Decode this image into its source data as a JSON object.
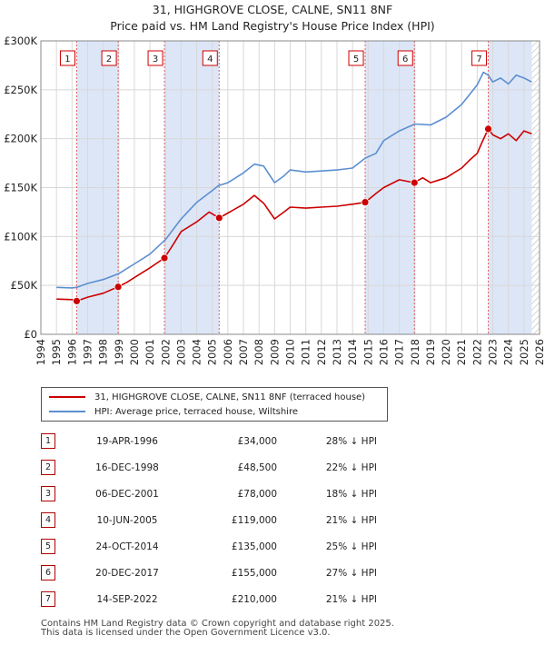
{
  "header": {
    "title": "31, HIGHGROVE CLOSE, CALNE, SN11 8NF",
    "subtitle": "Price paid vs. HM Land Registry's House Price Index (HPI)"
  },
  "legend": {
    "property": "31, HIGHGROVE CLOSE, CALNE, SN11 8NF (terraced house)",
    "hpi": "HPI: Average price, terraced house, Wiltshire"
  },
  "colors": {
    "property": "#cc0000",
    "hpi": "#5b8fd0",
    "shade": "#dde6f7",
    "marker_border": "#cc0000"
  },
  "chart_data": {
    "type": "line",
    "xlim": [
      1994,
      2026
    ],
    "ylim": [
      0,
      300000
    ],
    "y_ticks": [
      0,
      50000,
      100000,
      150000,
      200000,
      250000,
      300000
    ],
    "y_tick_labels": [
      "£0",
      "£50K",
      "£100K",
      "£150K",
      "£200K",
      "£250K",
      "£300K"
    ],
    "x_tick_labels": [
      "1994",
      "1995",
      "1996",
      "1997",
      "1998",
      "1999",
      "2000",
      "2001",
      "2002",
      "2003",
      "2004",
      "2005",
      "2006",
      "2007",
      "2008",
      "2009",
      "2010",
      "2011",
      "2012",
      "2013",
      "2014",
      "2015",
      "2016",
      "2017",
      "2018",
      "2019",
      "2020",
      "2021",
      "2022",
      "2023",
      "2024",
      "2025",
      "2026"
    ],
    "series": [
      {
        "name": "HPI: Average price, terraced house, Wiltshire",
        "color": "#5b8fd0",
        "x": [
          1995.0,
          1996.0,
          1996.3,
          1997.0,
          1998.0,
          1999.0,
          2000.0,
          2001.0,
          2002.0,
          2003.0,
          2004.0,
          2005.0,
          2005.4,
          2006.0,
          2007.0,
          2007.7,
          2008.3,
          2009.0,
          2009.6,
          2010.0,
          2011.0,
          2012.0,
          2013.0,
          2014.0,
          2014.8,
          2015.5,
          2016.0,
          2017.0,
          2018.0,
          2019.0,
          2020.0,
          2021.0,
          2021.5,
          2022.0,
          2022.4,
          2022.7,
          2023.0,
          2023.5,
          2024.0,
          2024.5,
          2025.0,
          2025.5
        ],
        "y": [
          48000,
          47500,
          48000,
          52000,
          56000,
          62000,
          72000,
          82000,
          97000,
          118000,
          135000,
          147000,
          152000,
          155000,
          165000,
          174000,
          172000,
          155000,
          162000,
          168000,
          166000,
          167000,
          168000,
          170000,
          180000,
          185000,
          198000,
          208000,
          215000,
          214000,
          222000,
          235000,
          245000,
          255000,
          268000,
          265000,
          258000,
          262000,
          256000,
          265000,
          262000,
          258000
        ]
      },
      {
        "name": "31, HIGHGROVE CLOSE, CALNE, SN11 8NF (terraced house)",
        "color": "#cc0000",
        "x": [
          1995.0,
          1996.0,
          1996.3,
          1997.0,
          1998.0,
          1998.95,
          1999.5,
          2000.0,
          2001.0,
          2001.93,
          2002.5,
          2003.0,
          2004.0,
          2004.8,
          2005.44,
          2006.0,
          2007.0,
          2007.7,
          2008.3,
          2009.0,
          2009.6,
          2010.0,
          2011.0,
          2012.0,
          2013.0,
          2014.0,
          2014.81,
          2015.5,
          2016.0,
          2017.0,
          2017.97,
          2018.5,
          2019.0,
          2020.0,
          2021.0,
          2021.5,
          2022.0,
          2022.3,
          2022.71,
          2023.0,
          2023.5,
          2024.0,
          2024.5,
          2025.0,
          2025.5
        ],
        "y": [
          36000,
          35500,
          34000,
          38000,
          42000,
          48500,
          53000,
          58000,
          68000,
          78000,
          92000,
          105000,
          115000,
          125000,
          119000,
          124000,
          133000,
          142000,
          134000,
          118000,
          125000,
          130000,
          129000,
          130000,
          131000,
          133000,
          135000,
          144000,
          150000,
          158000,
          155000,
          160000,
          155000,
          160000,
          170000,
          178000,
          185000,
          196000,
          210000,
          204000,
          200000,
          205000,
          198000,
          208000,
          205000
        ]
      }
    ],
    "sales": [
      {
        "label": "1",
        "date": "19-APR-1996",
        "x": 1996.3,
        "price": 34000,
        "price_text": "£34,000",
        "hpi_text": "28% ↓ HPI"
      },
      {
        "label": "2",
        "date": "16-DEC-1998",
        "x": 1998.96,
        "price": 48500,
        "price_text": "£48,500",
        "hpi_text": "22% ↓ HPI"
      },
      {
        "label": "3",
        "date": "06-DEC-2001",
        "x": 2001.93,
        "price": 78000,
        "price_text": "£78,000",
        "hpi_text": "18% ↓ HPI"
      },
      {
        "label": "4",
        "date": "10-JUN-2005",
        "x": 2005.44,
        "price": 119000,
        "price_text": "£119,000",
        "hpi_text": "21% ↓ HPI"
      },
      {
        "label": "5",
        "date": "24-OCT-2014",
        "x": 2014.81,
        "price": 135000,
        "price_text": "£135,000",
        "hpi_text": "25% ↓ HPI"
      },
      {
        "label": "6",
        "date": "20-DEC-2017",
        "x": 2017.97,
        "price": 155000,
        "price_text": "£155,000",
        "hpi_text": "27% ↓ HPI"
      },
      {
        "label": "7",
        "date": "14-SEP-2022",
        "x": 2022.71,
        "price": 210000,
        "price_text": "£210,000",
        "hpi_text": "21% ↓ HPI"
      }
    ],
    "shaded_spans": [
      [
        1996.3,
        1998.96
      ],
      [
        2001.93,
        2005.44
      ],
      [
        2014.81,
        2017.97
      ],
      [
        2022.71,
        2025.5
      ]
    ],
    "hatched_span": [
      2025.5,
      2026
    ]
  },
  "footer": {
    "line1": "Contains HM Land Registry data © Crown copyright and database right 2025.",
    "line2": "This data is licensed under the Open Government Licence v3.0."
  }
}
